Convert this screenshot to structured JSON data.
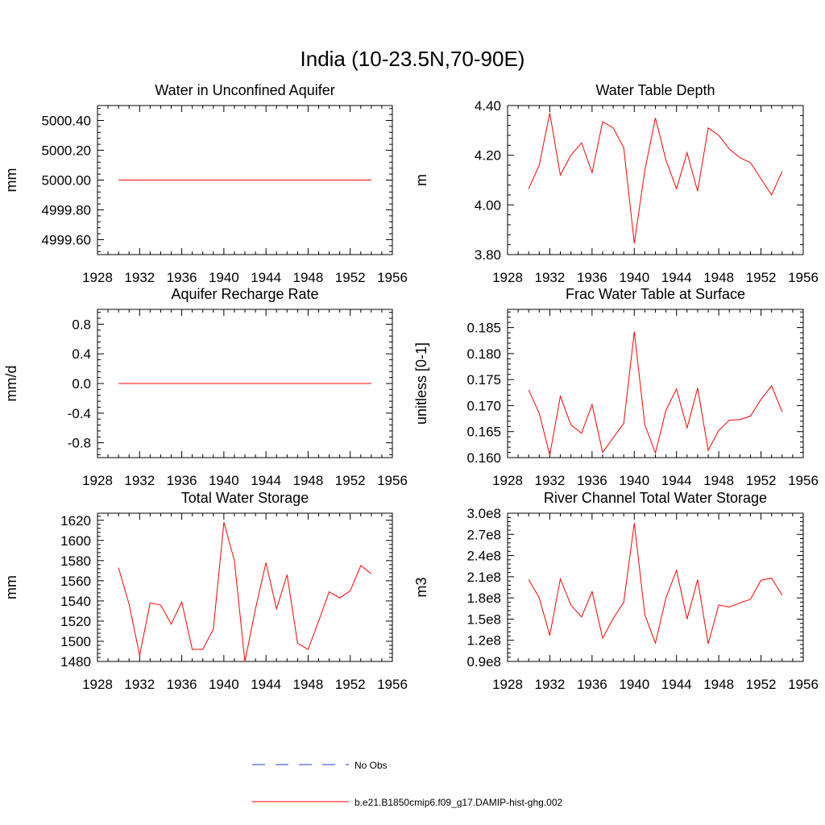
{
  "title": "India (10-23.5N,70-90E)",
  "colors": {
    "series": "#ff0000",
    "no_obs": "#2a38d6",
    "axis": "#000000"
  },
  "legend": {
    "no_obs_label": "No Obs",
    "series_label": "b.e21.B1850cmip6.f09_g17.DAMIP-hist-ghg.002"
  },
  "chart_data": [
    {
      "type": "line",
      "title": "Water in Unconfined Aquifer",
      "xlabel": "",
      "ylabel": "mm",
      "xlim": [
        1928,
        1956
      ],
      "ylim": [
        4999.5,
        5000.5
      ],
      "x_ticks": [
        "1928",
        "1932",
        "1936",
        "1940",
        "1944",
        "1948",
        "1952",
        "1956"
      ],
      "y_ticks": [
        {
          "v": 4999.6,
          "label": "4999.60"
        },
        {
          "v": 4999.8,
          "label": "4999.80"
        },
        {
          "v": 5000.0,
          "label": "5000.00"
        },
        {
          "v": 5000.2,
          "label": "5000.20"
        },
        {
          "v": 5000.4,
          "label": "5000.40"
        }
      ],
      "series": [
        {
          "x": [
            1930,
            1931,
            1932,
            1933,
            1934,
            1935,
            1936,
            1937,
            1938,
            1939,
            1940,
            1941,
            1942,
            1943,
            1944,
            1945,
            1946,
            1947,
            1948,
            1949,
            1950,
            1951,
            1952,
            1953,
            1954
          ],
          "values": [
            5000,
            5000,
            5000,
            5000,
            5000,
            5000,
            5000,
            5000,
            5000,
            5000,
            5000,
            5000,
            5000,
            5000,
            5000,
            5000,
            5000,
            5000,
            5000,
            5000,
            5000,
            5000,
            5000,
            5000,
            5000
          ]
        }
      ]
    },
    {
      "type": "line",
      "title": "Water Table Depth",
      "xlabel": "",
      "ylabel": "m",
      "xlim": [
        1928,
        1956
      ],
      "ylim": [
        3.8,
        4.4
      ],
      "x_ticks": [
        "1928",
        "1932",
        "1936",
        "1940",
        "1944",
        "1948",
        "1952",
        "1956"
      ],
      "y_ticks": [
        {
          "v": 3.8,
          "label": "3.80"
        },
        {
          "v": 4.0,
          "label": "4.00"
        },
        {
          "v": 4.2,
          "label": "4.20"
        },
        {
          "v": 4.4,
          "label": "4.40"
        }
      ],
      "series": [
        {
          "x": [
            1930,
            1931,
            1932,
            1933,
            1934,
            1935,
            1936,
            1937,
            1938,
            1939,
            1940,
            1941,
            1942,
            1943,
            1944,
            1945,
            1946,
            1947,
            1948,
            1949,
            1950,
            1951,
            1952,
            1953,
            1954
          ],
          "values": [
            4.065,
            4.16,
            4.37,
            4.12,
            4.2,
            4.25,
            4.13,
            4.335,
            4.31,
            4.23,
            3.845,
            4.14,
            4.35,
            4.18,
            4.065,
            4.21,
            4.055,
            4.31,
            4.28,
            4.225,
            4.19,
            4.17,
            4.105,
            4.04,
            4.135
          ]
        }
      ]
    },
    {
      "type": "line",
      "title": "Aquifer Recharge Rate",
      "xlabel": "",
      "ylabel": "mm/d",
      "xlim": [
        1928,
        1956
      ],
      "ylim": [
        -1.0,
        1.0
      ],
      "x_ticks": [
        "1928",
        "1932",
        "1936",
        "1940",
        "1944",
        "1948",
        "1952",
        "1956"
      ],
      "y_ticks": [
        {
          "v": -0.8,
          "label": "-0.8"
        },
        {
          "v": -0.4,
          "label": "-0.4"
        },
        {
          "v": 0.0,
          "label": "0.0"
        },
        {
          "v": 0.4,
          "label": "0.4"
        },
        {
          "v": 0.8,
          "label": "0.8"
        }
      ],
      "series": [
        {
          "x": [
            1930,
            1931,
            1932,
            1933,
            1934,
            1935,
            1936,
            1937,
            1938,
            1939,
            1940,
            1941,
            1942,
            1943,
            1944,
            1945,
            1946,
            1947,
            1948,
            1949,
            1950,
            1951,
            1952,
            1953,
            1954
          ],
          "values": [
            0,
            0,
            0,
            0,
            0,
            0,
            0,
            0,
            0,
            0,
            0,
            0,
            0,
            0,
            0,
            0,
            0,
            0,
            0,
            0,
            0,
            0,
            0,
            0,
            0
          ]
        }
      ]
    },
    {
      "type": "line",
      "title": "Frac Water Table at Surface",
      "xlabel": "",
      "ylabel": "unitless [0-1]",
      "xlim": [
        1928,
        1956
      ],
      "ylim": [
        0.16,
        0.1885
      ],
      "x_ticks": [
        "1928",
        "1932",
        "1936",
        "1940",
        "1944",
        "1948",
        "1952",
        "1956"
      ],
      "y_ticks": [
        {
          "v": 0.16,
          "label": "0.160"
        },
        {
          "v": 0.165,
          "label": "0.165"
        },
        {
          "v": 0.17,
          "label": "0.170"
        },
        {
          "v": 0.175,
          "label": "0.175"
        },
        {
          "v": 0.18,
          "label": "0.180"
        },
        {
          "v": 0.185,
          "label": "0.185"
        }
      ],
      "series": [
        {
          "x": [
            1930,
            1931,
            1932,
            1933,
            1934,
            1935,
            1936,
            1937,
            1938,
            1939,
            1940,
            1941,
            1942,
            1943,
            1944,
            1945,
            1946,
            1947,
            1948,
            1949,
            1950,
            1951,
            1952,
            1953,
            1954
          ],
          "values": [
            0.173,
            0.1685,
            0.1605,
            0.1718,
            0.1663,
            0.1647,
            0.1702,
            0.161,
            0.1638,
            0.1666,
            0.1842,
            0.1663,
            0.1609,
            0.1691,
            0.1732,
            0.1657,
            0.1734,
            0.1614,
            0.1652,
            0.1672,
            0.1673,
            0.168,
            0.1712,
            0.1738,
            0.1688
          ]
        }
      ]
    },
    {
      "type": "line",
      "title": "Total Water Storage",
      "xlabel": "",
      "ylabel": "mm",
      "xlim": [
        1928,
        1956
      ],
      "ylim": [
        1480,
        1627
      ],
      "x_ticks": [
        "1928",
        "1932",
        "1936",
        "1940",
        "1944",
        "1948",
        "1952",
        "1956"
      ],
      "y_ticks": [
        {
          "v": 1480,
          "label": "1480"
        },
        {
          "v": 1500,
          "label": "1500"
        },
        {
          "v": 1520,
          "label": "1520"
        },
        {
          "v": 1540,
          "label": "1540"
        },
        {
          "v": 1560,
          "label": "1560"
        },
        {
          "v": 1580,
          "label": "1580"
        },
        {
          "v": 1600,
          "label": "1600"
        },
        {
          "v": 1620,
          "label": "1620"
        }
      ],
      "series": [
        {
          "x": [
            1930,
            1931,
            1932,
            1933,
            1934,
            1935,
            1936,
            1937,
            1938,
            1939,
            1940,
            1941,
            1942,
            1943,
            1944,
            1945,
            1946,
            1947,
            1948,
            1949,
            1950,
            1951,
            1952,
            1953,
            1954
          ],
          "values": [
            1573,
            1537,
            1486,
            1538,
            1536,
            1517,
            1539,
            1492,
            1492,
            1512,
            1618,
            1580,
            1480,
            1532,
            1578,
            1532,
            1566,
            1498,
            1492,
            1520,
            1549,
            1543,
            1550,
            1575,
            1567
          ]
        }
      ]
    },
    {
      "type": "line",
      "title": "River Channel Total Water Storage",
      "xlabel": "",
      "ylabel": "m3",
      "xlim": [
        1928,
        1956
      ],
      "ylim": [
        0.9,
        3.0
      ],
      "y_scale_note": "values in units of 1e8",
      "x_ticks": [
        "1928",
        "1932",
        "1936",
        "1940",
        "1944",
        "1948",
        "1952",
        "1956"
      ],
      "y_ticks": [
        {
          "v": 0.9,
          "label": "0.9e8"
        },
        {
          "v": 1.2,
          "label": "1.2e8"
        },
        {
          "v": 1.5,
          "label": "1.5e8"
        },
        {
          "v": 1.8,
          "label": "1.8e8"
        },
        {
          "v": 2.1,
          "label": "2.1e8"
        },
        {
          "v": 2.4,
          "label": "2.4e8"
        },
        {
          "v": 2.7,
          "label": "2.7e8"
        },
        {
          "v": 3.0,
          "label": "3.0e8"
        }
      ],
      "series": [
        {
          "x": [
            1930,
            1931,
            1932,
            1933,
            1934,
            1935,
            1936,
            1937,
            1938,
            1939,
            1940,
            1941,
            1942,
            1943,
            1944,
            1945,
            1946,
            1947,
            1948,
            1949,
            1950,
            1951,
            1952,
            1953,
            1954
          ],
          "values": [
            2.06,
            1.8,
            1.27,
            2.07,
            1.7,
            1.53,
            1.89,
            1.23,
            1.51,
            1.74,
            2.86,
            1.56,
            1.16,
            1.8,
            2.19,
            1.5,
            2.06,
            1.15,
            1.7,
            1.67,
            1.73,
            1.78,
            2.05,
            2.08,
            1.84
          ]
        }
      ]
    }
  ]
}
